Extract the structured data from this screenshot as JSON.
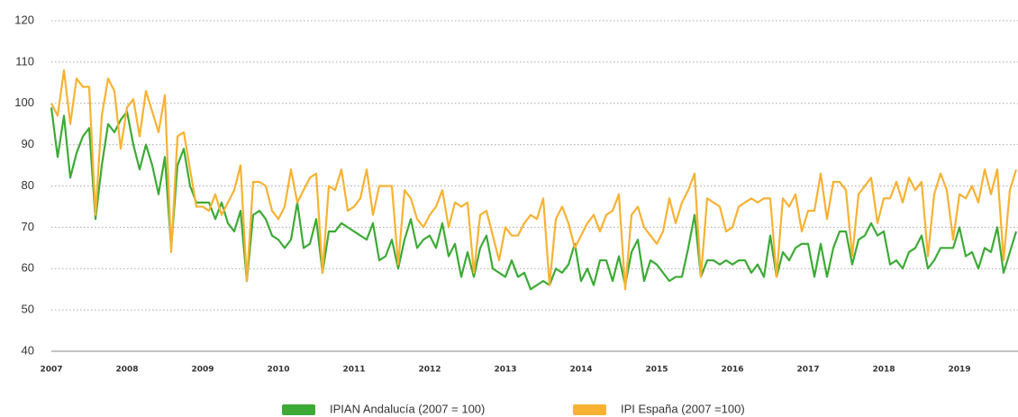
{
  "chart_data": {
    "type": "line",
    "categories": [
      "2007",
      null,
      null,
      null,
      null,
      null,
      null,
      null,
      null,
      null,
      null,
      null,
      "2008",
      null,
      null,
      null,
      null,
      null,
      null,
      null,
      null,
      null,
      null,
      null,
      "2009",
      null,
      null,
      null,
      null,
      null,
      null,
      null,
      null,
      null,
      null,
      null,
      "2010",
      null,
      null,
      null,
      null,
      null,
      null,
      null,
      null,
      null,
      null,
      null,
      "2011",
      null,
      null,
      null,
      null,
      null,
      null,
      null,
      null,
      null,
      null,
      null,
      "2012",
      null,
      null,
      null,
      null,
      null,
      null,
      null,
      null,
      null,
      null,
      null,
      "2013",
      null,
      null,
      null,
      null,
      null,
      null,
      null,
      null,
      null,
      null,
      null,
      "2014",
      null,
      null,
      null,
      null,
      null,
      null,
      null,
      null,
      null,
      null,
      null,
      "2015",
      null,
      null,
      null,
      null,
      null,
      null,
      null,
      null,
      null,
      null,
      null,
      "2016",
      null,
      null,
      null,
      null,
      null,
      null,
      null,
      null,
      null,
      null,
      null,
      "2017",
      null,
      null,
      null,
      null,
      null,
      null,
      null,
      null,
      null,
      null,
      null,
      "2018",
      null,
      null,
      null,
      null,
      null,
      null,
      null,
      null,
      null,
      null,
      null,
      "2019",
      null,
      null,
      null,
      null,
      null,
      null,
      null,
      null,
      null
    ],
    "series": [
      {
        "name": "IPIAN Andalucía (2007 = 100)",
        "color": "#3daa36",
        "values": [
          99,
          87,
          97,
          82,
          88,
          92,
          94,
          72,
          85,
          95,
          93,
          96,
          98,
          90,
          84,
          90,
          85,
          78,
          87,
          65,
          85,
          89,
          80,
          76,
          76,
          76,
          72,
          76,
          71,
          69,
          74,
          57,
          73,
          74,
          72,
          68,
          67,
          65,
          67,
          76,
          65,
          66,
          72,
          59,
          69,
          69,
          71,
          70,
          69,
          68,
          67,
          71,
          62,
          63,
          67,
          60,
          67,
          72,
          65,
          67,
          68,
          65,
          71,
          63,
          66,
          58,
          64,
          58,
          65,
          68,
          60,
          59,
          58,
          62,
          58,
          59,
          55,
          56,
          57,
          56,
          60,
          59,
          61,
          66,
          57,
          60,
          56,
          62,
          62,
          57,
          63,
          56,
          64,
          67,
          57,
          62,
          61,
          59,
          57,
          58,
          58,
          65,
          73,
          58,
          62,
          62,
          61,
          62,
          61,
          62,
          62,
          59,
          61,
          58,
          68,
          58,
          64,
          62,
          65,
          66,
          66,
          58,
          66,
          58,
          65,
          69,
          69,
          61,
          67,
          68,
          71,
          68,
          69,
          61,
          62,
          60,
          64,
          65,
          68,
          60,
          62,
          65,
          65,
          65,
          70,
          63,
          64,
          60,
          65,
          64,
          70,
          59,
          64,
          69
        ]
      },
      {
        "name": "IPI España (2007 =100)",
        "color": "#f7b233",
        "values": [
          100,
          97,
          108,
          95,
          106,
          104,
          104,
          73,
          97,
          106,
          103,
          89,
          99,
          101,
          92,
          103,
          98,
          93,
          102,
          64,
          92,
          93,
          84,
          75,
          75,
          74,
          78,
          73,
          76,
          79,
          85,
          57,
          81,
          81,
          80,
          74,
          72,
          75,
          84,
          76,
          79,
          82,
          83,
          59,
          80,
          79,
          84,
          74,
          75,
          77,
          84,
          73,
          80,
          80,
          80,
          61,
          79,
          77,
          72,
          70,
          73,
          75,
          79,
          70,
          76,
          75,
          76,
          59,
          73,
          74,
          68,
          62,
          70,
          68,
          68,
          71,
          73,
          72,
          77,
          56,
          72,
          75,
          71,
          65,
          68,
          71,
          73,
          69,
          73,
          74,
          78,
          55,
          73,
          75,
          70,
          68,
          66,
          69,
          77,
          71,
          76,
          79,
          83,
          58,
          77,
          76,
          75,
          69,
          70,
          75,
          76,
          77,
          76,
          77,
          77,
          58,
          77,
          75,
          78,
          69,
          74,
          74,
          83,
          72,
          81,
          81,
          79,
          63,
          78,
          80,
          82,
          71,
          77,
          77,
          81,
          76,
          82,
          79,
          81,
          63,
          78,
          83,
          79,
          67,
          78,
          77,
          80,
          76,
          84,
          78,
          84,
          62,
          79,
          84
        ]
      }
    ],
    "ylim": [
      40,
      120
    ],
    "yticks": [
      40,
      50,
      60,
      70,
      80,
      90,
      100,
      110,
      120
    ],
    "grid": true,
    "legend": "bottom"
  }
}
